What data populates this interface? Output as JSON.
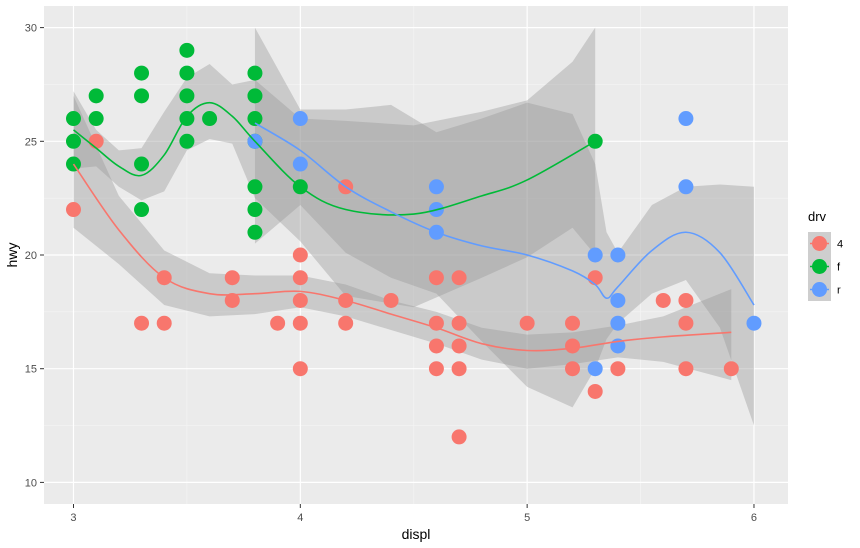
{
  "chart_data": {
    "type": "scatter",
    "title": "",
    "xlabel": "displ",
    "ylabel": "hwy",
    "xlim": [
      2.87,
      6.15
    ],
    "ylim": [
      9.05,
      30.95
    ],
    "x_ticks": [
      3,
      4,
      5,
      6
    ],
    "y_ticks": [
      10,
      15,
      20,
      25,
      30
    ],
    "x_tick_labels": [
      "3",
      "4",
      "5",
      "6"
    ],
    "y_tick_labels": [
      "10",
      "15",
      "20",
      "25",
      "30"
    ],
    "grid": true,
    "smooth": "loess with confidence band",
    "legend": {
      "title": "drv",
      "position": "right"
    },
    "series": [
      {
        "name": "4",
        "color": "#F8766D",
        "points": [
          [
            3.0,
            22
          ],
          [
            3.1,
            25
          ],
          [
            3.3,
            17
          ],
          [
            3.4,
            17
          ],
          [
            3.4,
            19
          ],
          [
            3.7,
            19
          ],
          [
            3.7,
            18
          ],
          [
            3.9,
            17
          ],
          [
            4.0,
            20
          ],
          [
            4.0,
            19
          ],
          [
            4.0,
            18
          ],
          [
            4.0,
            17
          ],
          [
            4.0,
            15
          ],
          [
            4.2,
            18
          ],
          [
            4.2,
            23
          ],
          [
            4.2,
            17
          ],
          [
            4.4,
            18
          ],
          [
            4.6,
            19
          ],
          [
            4.6,
            17
          ],
          [
            4.6,
            16
          ],
          [
            4.6,
            15
          ],
          [
            4.7,
            19
          ],
          [
            4.7,
            17
          ],
          [
            4.7,
            16
          ],
          [
            4.7,
            15
          ],
          [
            4.7,
            12
          ],
          [
            5.0,
            17
          ],
          [
            5.2,
            17
          ],
          [
            5.2,
            16
          ],
          [
            5.2,
            15
          ],
          [
            5.3,
            19
          ],
          [
            5.3,
            14
          ],
          [
            5.4,
            15
          ],
          [
            5.6,
            18
          ],
          [
            5.7,
            18
          ],
          [
            5.7,
            17
          ],
          [
            5.7,
            15
          ],
          [
            5.9,
            15
          ]
        ],
        "smooth_line": [
          [
            3.0,
            24.0
          ],
          [
            3.2,
            21.1
          ],
          [
            3.4,
            19.0
          ],
          [
            3.6,
            18.3
          ],
          [
            3.8,
            18.3
          ],
          [
            4.0,
            18.4
          ],
          [
            4.2,
            18.0
          ],
          [
            4.4,
            17.4
          ],
          [
            4.6,
            16.8
          ],
          [
            4.8,
            16.1
          ],
          [
            5.0,
            15.8
          ],
          [
            5.2,
            15.9
          ],
          [
            5.4,
            16.2
          ],
          [
            5.6,
            16.4
          ],
          [
            5.9,
            16.6
          ]
        ],
        "band_upper": [
          [
            3.0,
            27.0
          ],
          [
            3.2,
            22.6
          ],
          [
            3.4,
            20.2
          ],
          [
            3.6,
            19.2
          ],
          [
            3.8,
            19.1
          ],
          [
            4.0,
            19.1
          ],
          [
            4.2,
            18.7
          ],
          [
            4.4,
            18.0
          ],
          [
            4.6,
            17.5
          ],
          [
            4.8,
            16.8
          ],
          [
            5.0,
            16.5
          ],
          [
            5.2,
            16.6
          ],
          [
            5.4,
            16.9
          ],
          [
            5.6,
            17.3
          ],
          [
            5.9,
            18.5
          ]
        ],
        "band_lower": [
          [
            3.0,
            21.2
          ],
          [
            3.2,
            19.6
          ],
          [
            3.4,
            17.8
          ],
          [
            3.6,
            17.3
          ],
          [
            3.8,
            17.4
          ],
          [
            4.0,
            17.7
          ],
          [
            4.2,
            17.3
          ],
          [
            4.4,
            16.7
          ],
          [
            4.6,
            16.1
          ],
          [
            4.8,
            15.4
          ],
          [
            5.0,
            15.0
          ],
          [
            5.2,
            15.2
          ],
          [
            5.4,
            15.5
          ],
          [
            5.6,
            15.3
          ],
          [
            5.9,
            14.5
          ]
        ]
      },
      {
        "name": "f",
        "color": "#00BA38",
        "points": [
          [
            3.0,
            26
          ],
          [
            3.0,
            25
          ],
          [
            3.0,
            24
          ],
          [
            3.1,
            27
          ],
          [
            3.1,
            26
          ],
          [
            3.3,
            28
          ],
          [
            3.3,
            27
          ],
          [
            3.3,
            24
          ],
          [
            3.3,
            22
          ],
          [
            3.5,
            29
          ],
          [
            3.5,
            28
          ],
          [
            3.5,
            27
          ],
          [
            3.5,
            26
          ],
          [
            3.5,
            25
          ],
          [
            3.6,
            26
          ],
          [
            3.8,
            28
          ],
          [
            3.8,
            27
          ],
          [
            3.8,
            26
          ],
          [
            3.8,
            25
          ],
          [
            3.8,
            23
          ],
          [
            3.8,
            22
          ],
          [
            3.8,
            21
          ],
          [
            4.0,
            23
          ],
          [
            5.3,
            25
          ]
        ],
        "smooth_line": [
          [
            3.0,
            25.5
          ],
          [
            3.1,
            24.7
          ],
          [
            3.2,
            23.9
          ],
          [
            3.3,
            23.5
          ],
          [
            3.4,
            24.4
          ],
          [
            3.5,
            26.1
          ],
          [
            3.6,
            26.7
          ],
          [
            3.7,
            26.1
          ],
          [
            3.8,
            25.0
          ],
          [
            4.0,
            23.0
          ],
          [
            4.2,
            22.0
          ],
          [
            4.5,
            21.8
          ],
          [
            4.8,
            22.6
          ],
          [
            5.0,
            23.3
          ],
          [
            5.3,
            25.0
          ]
        ],
        "band_upper": [
          [
            3.0,
            27.2
          ],
          [
            3.1,
            25.5
          ],
          [
            3.2,
            24.6
          ],
          [
            3.3,
            24.7
          ],
          [
            3.4,
            26.3
          ],
          [
            3.5,
            27.8
          ],
          [
            3.6,
            28.4
          ],
          [
            3.7,
            27.5
          ],
          [
            3.8,
            27.7
          ],
          [
            4.0,
            26.0
          ],
          [
            4.2,
            25.9
          ],
          [
            4.5,
            25.7
          ],
          [
            4.8,
            26.3
          ],
          [
            5.0,
            26.8
          ],
          [
            5.2,
            28.5
          ],
          [
            5.3,
            30.0
          ]
        ],
        "band_lower": [
          [
            3.0,
            23.8
          ],
          [
            3.1,
            23.9
          ],
          [
            3.2,
            23.0
          ],
          [
            3.3,
            22.4
          ],
          [
            3.4,
            22.8
          ],
          [
            3.5,
            24.6
          ],
          [
            3.6,
            25.1
          ],
          [
            3.7,
            24.9
          ],
          [
            3.8,
            22.5
          ],
          [
            4.0,
            20.6
          ],
          [
            4.2,
            18.2
          ],
          [
            4.5,
            17.7
          ],
          [
            4.8,
            19.0
          ],
          [
            5.0,
            19.9
          ],
          [
            5.2,
            21.2
          ],
          [
            5.3,
            20.0
          ]
        ]
      },
      {
        "name": "r",
        "color": "#619CFF",
        "points": [
          [
            3.8,
            25
          ],
          [
            4.0,
            26
          ],
          [
            4.0,
            24
          ],
          [
            4.6,
            23
          ],
          [
            4.6,
            22
          ],
          [
            4.6,
            21
          ],
          [
            5.3,
            20
          ],
          [
            5.3,
            15
          ],
          [
            5.4,
            20
          ],
          [
            5.4,
            18
          ],
          [
            5.4,
            17
          ],
          [
            5.4,
            16
          ],
          [
            5.7,
            26
          ],
          [
            5.7,
            23
          ],
          [
            6.0,
            17
          ]
        ],
        "smooth_line": [
          [
            3.8,
            25.8
          ],
          [
            4.0,
            24.6
          ],
          [
            4.2,
            23.0
          ],
          [
            4.4,
            21.9
          ],
          [
            4.6,
            21.0
          ],
          [
            4.8,
            20.4
          ],
          [
            5.0,
            20.0
          ],
          [
            5.2,
            19.3
          ],
          [
            5.3,
            18.7
          ],
          [
            5.35,
            18.1
          ],
          [
            5.4,
            18.6
          ],
          [
            5.55,
            20.2
          ],
          [
            5.7,
            21.0
          ],
          [
            5.85,
            20.1
          ],
          [
            6.0,
            17.8
          ]
        ],
        "band_upper": [
          [
            3.8,
            30.0
          ],
          [
            4.0,
            26.4
          ],
          [
            4.2,
            26.4
          ],
          [
            4.4,
            26.6
          ],
          [
            4.6,
            25.4
          ],
          [
            4.8,
            26.0
          ],
          [
            5.0,
            26.7
          ],
          [
            5.2,
            26.2
          ],
          [
            5.3,
            24.0
          ],
          [
            5.35,
            21.0
          ],
          [
            5.4,
            20.1
          ],
          [
            5.55,
            22.2
          ],
          [
            5.7,
            23.0
          ],
          [
            5.85,
            23.1
          ],
          [
            6.0,
            23.0
          ]
        ],
        "band_lower": [
          [
            3.8,
            20.5
          ],
          [
            4.0,
            22.2
          ],
          [
            4.2,
            20.1
          ],
          [
            4.4,
            19.0
          ],
          [
            4.6,
            18.3
          ],
          [
            4.8,
            16.2
          ],
          [
            5.0,
            14.2
          ],
          [
            5.2,
            13.3
          ],
          [
            5.3,
            15.0
          ],
          [
            5.35,
            16.3
          ],
          [
            5.4,
            17.0
          ],
          [
            5.55,
            18.3
          ],
          [
            5.7,
            18.9
          ],
          [
            5.85,
            16.8
          ],
          [
            6.0,
            12.5
          ]
        ]
      }
    ]
  }
}
